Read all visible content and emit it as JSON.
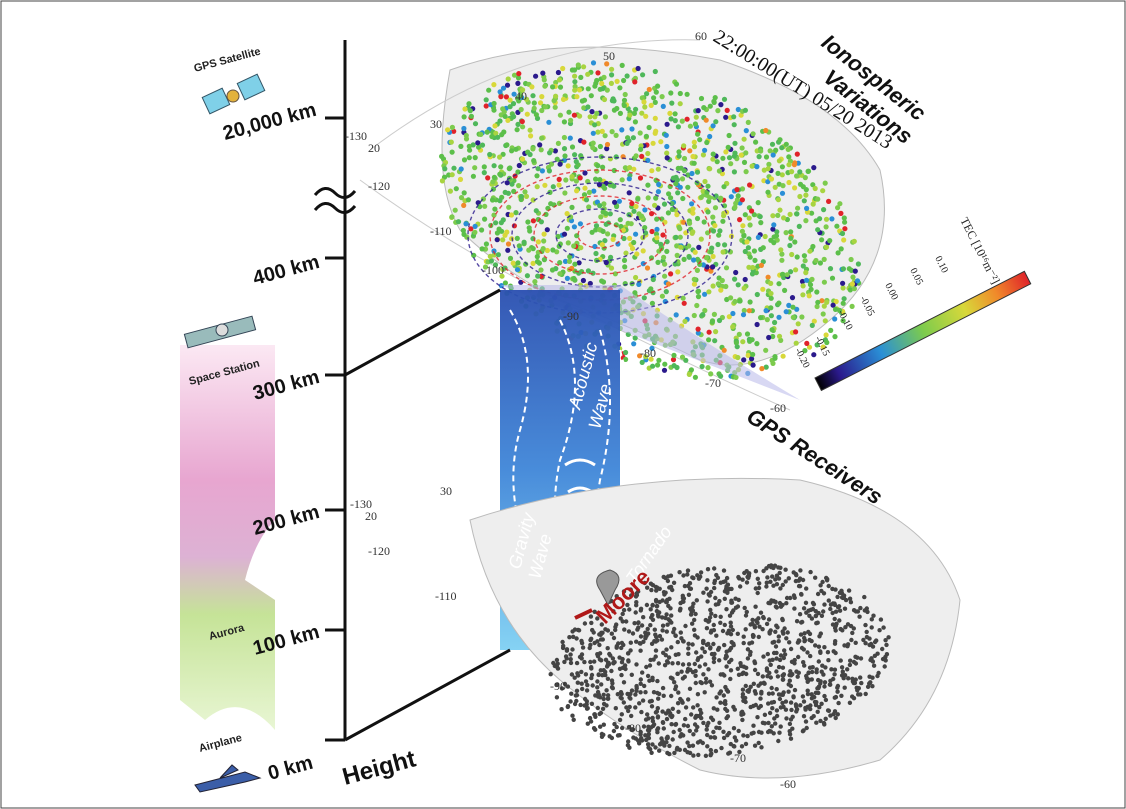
{
  "height_axis": {
    "title": "Height",
    "ticks": [
      "20,000 km",
      "400 km",
      "300 km",
      "200 km",
      "100 km",
      "0 km"
    ]
  },
  "objects": {
    "gps_satellite": "GPS Satellite",
    "space_station": "Space Station",
    "aurora": "Aurora",
    "airplane": "Airplane"
  },
  "ionosphere": {
    "title_lines": [
      "Ionospheric",
      "Variations"
    ],
    "timestamp": "22:00:00(UT)  05/20 2013"
  },
  "colorbar": {
    "label": "TEC [10¹⁶m⁻²]",
    "ticks": [
      "0.10",
      "0.05",
      "0.00",
      "-0.05",
      "-0.10",
      "-0.15",
      "-0.20"
    ]
  },
  "receivers": {
    "title": "GPS Receivers"
  },
  "waves": {
    "acoustic": [
      "Acoustic",
      "Wave"
    ],
    "gravity": [
      "Gravity",
      "Wave"
    ],
    "tornado": "Tornado",
    "location": "Moore"
  },
  "map_top": {
    "lat": [
      "60",
      "50",
      "40",
      "30",
      "20"
    ],
    "lon": [
      "-130",
      "-120",
      "-110",
      "-100",
      "-90",
      "-80",
      "-70",
      "-60"
    ]
  },
  "map_bottom": {
    "lat": [
      "30",
      "20"
    ],
    "lon": [
      "-130",
      "-120",
      "-110",
      "-90",
      "-80",
      "-70",
      "-60"
    ]
  }
}
